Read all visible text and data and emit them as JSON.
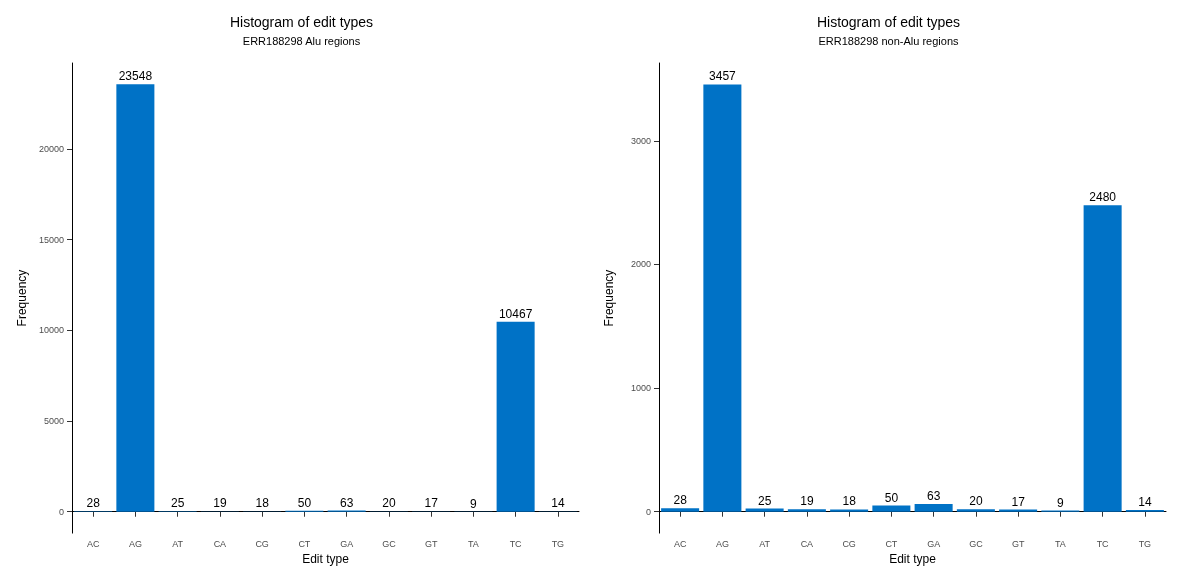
{
  "chart_data": [
    {
      "type": "bar",
      "title": "Histogram of edit types",
      "subtitle": "ERR188298 Alu regions",
      "xlabel": "Edit type",
      "ylabel": "Frequency",
      "categories": [
        "AC",
        "AG",
        "AT",
        "CA",
        "CG",
        "CT",
        "GA",
        "GC",
        "GT",
        "TA",
        "TC",
        "TG"
      ],
      "color": "#0072c6",
      "values": [
        28,
        23548,
        25,
        19,
        18,
        50,
        63,
        20,
        17,
        9,
        10467,
        14
      ],
      "ylim": [
        -1177,
        24725
      ],
      "yticks": [
        0,
        5000,
        10000,
        15000,
        20000
      ],
      "data_labels": true
    },
    {
      "type": "bar",
      "title": "Histogram of edit types",
      "subtitle": "ERR188298 non-Alu regions",
      "xlabel": "Edit type",
      "ylabel": "Frequency",
      "categories": [
        "AC",
        "AG",
        "AT",
        "CA",
        "CG",
        "CT",
        "GA",
        "GC",
        "GT",
        "TA",
        "TC",
        "TG"
      ],
      "color": "#0072c6",
      "values": [
        28,
        3457,
        25,
        19,
        18,
        50,
        63,
        20,
        17,
        9,
        2480,
        14
      ],
      "ylim": [
        -173,
        3630
      ],
      "yticks": [
        0,
        1000,
        2000,
        3000
      ],
      "data_labels": true
    }
  ]
}
